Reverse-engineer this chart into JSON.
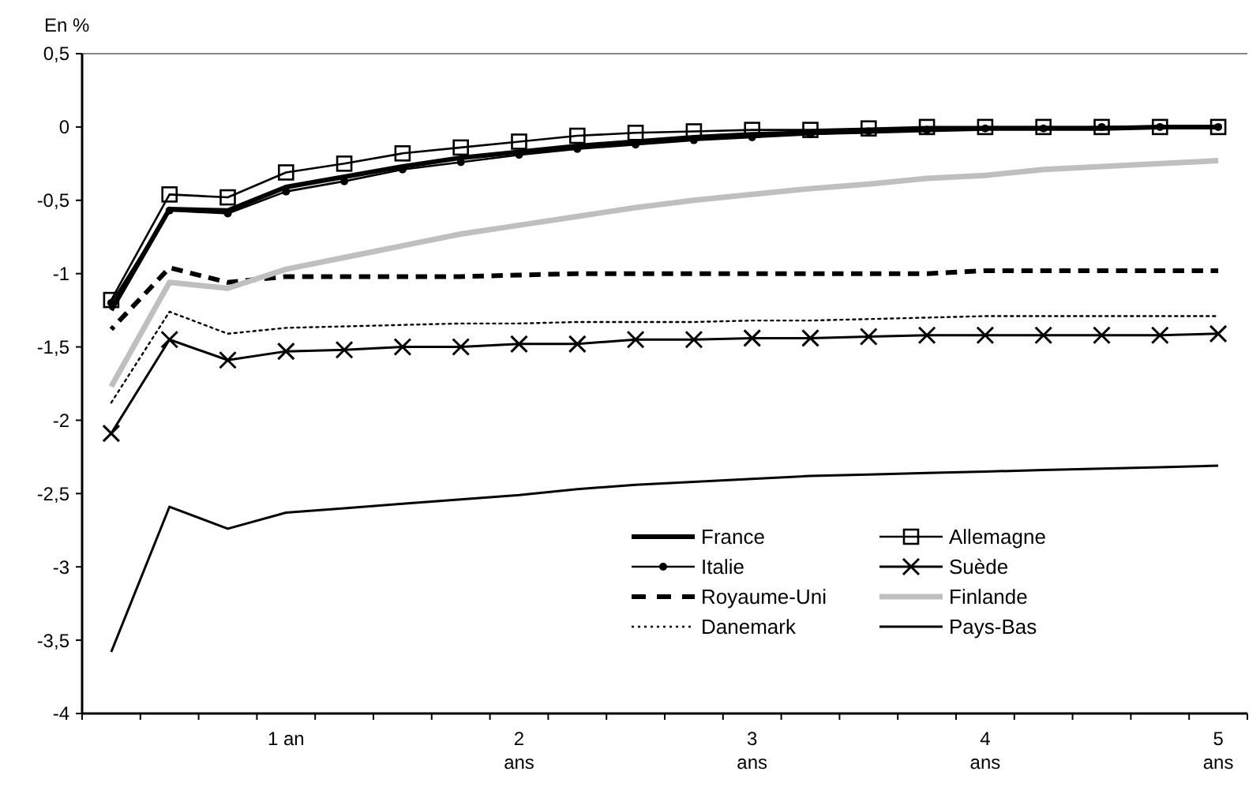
{
  "chart_data": {
    "type": "line",
    "ylabel": "En %",
    "categories": [
      null,
      null,
      null,
      "1 an",
      null,
      null,
      null,
      "2 ans",
      null,
      null,
      null,
      "3 ans",
      null,
      null,
      null,
      "4 ans",
      null,
      null,
      null,
      "5 ans"
    ],
    "ylim": [
      -4,
      0.5
    ],
    "yticks": [
      -4,
      {
        "value": -3.5,
        "label": "-3,5"
      },
      -3,
      {
        "value": -2.5,
        "label": "-2,5"
      },
      -2,
      {
        "value": -1.5,
        "label": "-1,5"
      },
      -1,
      {
        "value": -0.5,
        "label": "-0,5"
      },
      0,
      {
        "value": 0.5,
        "label": "0,5"
      }
    ],
    "legend": "bottom",
    "series": [
      {
        "name": "France",
        "color": "#000000",
        "marker": "none",
        "line_style": "solid",
        "values": [
          -1.25,
          -0.56,
          -0.57,
          -0.41,
          -0.34,
          -0.27,
          -0.21,
          -0.17,
          -0.13,
          -0.1,
          -0.07,
          -0.05,
          -0.04,
          -0.03,
          -0.02,
          -0.01,
          -0.01,
          -0.01,
          0,
          0
        ]
      },
      {
        "name": "Allemagne",
        "color": "#000000",
        "marker": "square",
        "line_style": "solid",
        "values": [
          -1.18,
          -0.46,
          -0.48,
          -0.31,
          -0.25,
          -0.18,
          -0.14,
          -0.1,
          -0.06,
          -0.04,
          -0.03,
          -0.02,
          -0.02,
          -0.01,
          0,
          0,
          0,
          0,
          0,
          0
        ]
      },
      {
        "name": "Italie",
        "color": "#000000",
        "marker": "circle",
        "line_style": "solid",
        "values": [
          -1.2,
          -0.57,
          -0.59,
          -0.44,
          -0.37,
          -0.29,
          -0.24,
          -0.19,
          -0.15,
          -0.12,
          -0.09,
          -0.07,
          -0.05,
          -0.03,
          -0.02,
          -0.01,
          -0.01,
          0,
          0,
          0
        ]
      },
      {
        "name": "Suède",
        "color": "#000000",
        "marker": "cross",
        "line_style": "solid",
        "values": [
          -2.09,
          -1.45,
          -1.59,
          -1.53,
          -1.52,
          -1.5,
          -1.5,
          -1.48,
          -1.48,
          -1.45,
          -1.45,
          -1.44,
          -1.44,
          -1.43,
          -1.42,
          -1.42,
          -1.42,
          -1.42,
          -1.42,
          -1.41
        ]
      },
      {
        "name": "Royaume-Uni",
        "color": "#000000",
        "marker": "none",
        "line_style": "dashed",
        "values": [
          -1.38,
          -0.96,
          -1.06,
          -1.02,
          -1.02,
          -1.02,
          -1.02,
          -1.01,
          -1,
          -1,
          -1,
          -1,
          -1,
          -1,
          -1,
          -0.98,
          -0.98,
          -0.98,
          -0.98,
          -0.98
        ]
      },
      {
        "name": "Finlande",
        "color": "#bfbfbf",
        "marker": "none",
        "line_style": "solid",
        "values": [
          -1.77,
          -1.06,
          -1.1,
          -0.97,
          -0.89,
          -0.81,
          -0.73,
          -0.67,
          -0.61,
          -0.55,
          -0.5,
          -0.46,
          -0.42,
          -0.39,
          -0.35,
          -0.33,
          -0.29,
          -0.27,
          -0.25,
          -0.23
        ]
      },
      {
        "name": "Danemark",
        "color": "#000000",
        "marker": "none",
        "line_style": "dotted",
        "values": [
          -1.88,
          -1.26,
          -1.41,
          -1.37,
          -1.36,
          -1.35,
          -1.34,
          -1.34,
          -1.33,
          -1.33,
          -1.33,
          -1.32,
          -1.32,
          -1.31,
          -1.3,
          -1.29,
          -1.29,
          -1.29,
          -1.29,
          -1.29
        ]
      },
      {
        "name": "Pays-Bas",
        "color": "#000000",
        "marker": "none",
        "line_style": "solid",
        "values": [
          -3.58,
          -2.59,
          -2.74,
          -2.63,
          -2.6,
          -2.57,
          -2.54,
          -2.51,
          -2.47,
          -2.44,
          -2.42,
          -2.4,
          -2.38,
          -2.37,
          -2.36,
          -2.35,
          -2.34,
          -2.33,
          -2.32,
          -2.31
        ]
      }
    ]
  }
}
